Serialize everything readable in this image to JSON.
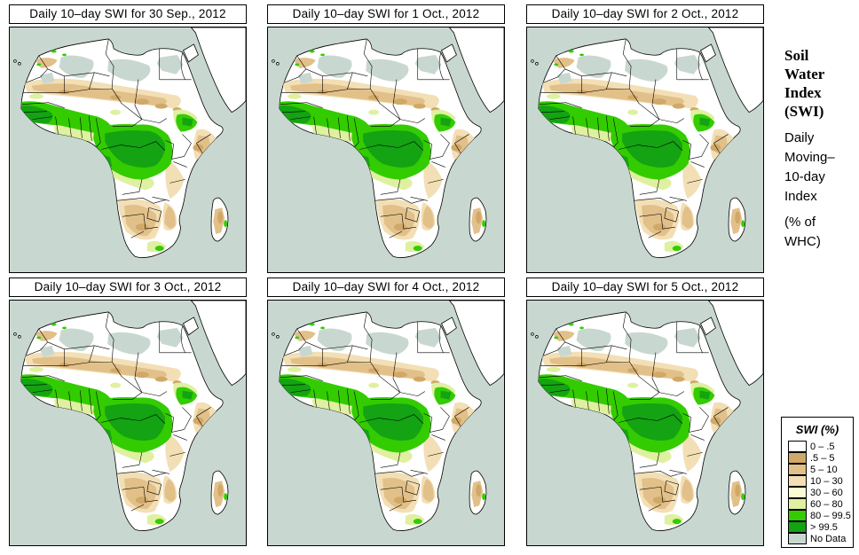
{
  "panels": [
    {
      "title": "Daily 10–day SWI for  30 Sep., 2012"
    },
    {
      "title": "Daily 10–day SWI for  1 Oct., 2012"
    },
    {
      "title": "Daily 10–day SWI for  2 Oct., 2012"
    },
    {
      "title": "Daily 10–day SWI for  3 Oct., 2012"
    },
    {
      "title": "Daily 10–day SWI for  4 Oct., 2012"
    },
    {
      "title": "Daily 10–day SWI for  5 Oct., 2012"
    }
  ],
  "sidebar": {
    "title": "Soil\nWater\nIndex\n(SWI)",
    "subtitle": "Daily\nMoving–\n10-day\nIndex",
    "unit": "(% of\n WHC)"
  },
  "legend": {
    "title": "SWI (%)",
    "entries": [
      {
        "label": "0 – .5",
        "color": "#FFFFFF"
      },
      {
        "label": ".5 – 5",
        "color": "#D0A868"
      },
      {
        "label": "5 – 10",
        "color": "#E2C089"
      },
      {
        "label": "10 – 30",
        "color": "#F3DFB5"
      },
      {
        "label": "30 – 60",
        "color": "#FAFAD2"
      },
      {
        "label": "60 – 80",
        "color": "#DFF0A0"
      },
      {
        "label": "80 – 99.5",
        "color": "#33CC00"
      },
      {
        "label": "> 99.5",
        "color": "#13A313"
      },
      {
        "label": "No Data",
        "color": "#C8D8D0"
      }
    ]
  },
  "map": {
    "region": "Africa",
    "ocean_color": "#C8D8D0",
    "land_color": "#FFFFFF",
    "boundary_color": "#000000"
  }
}
